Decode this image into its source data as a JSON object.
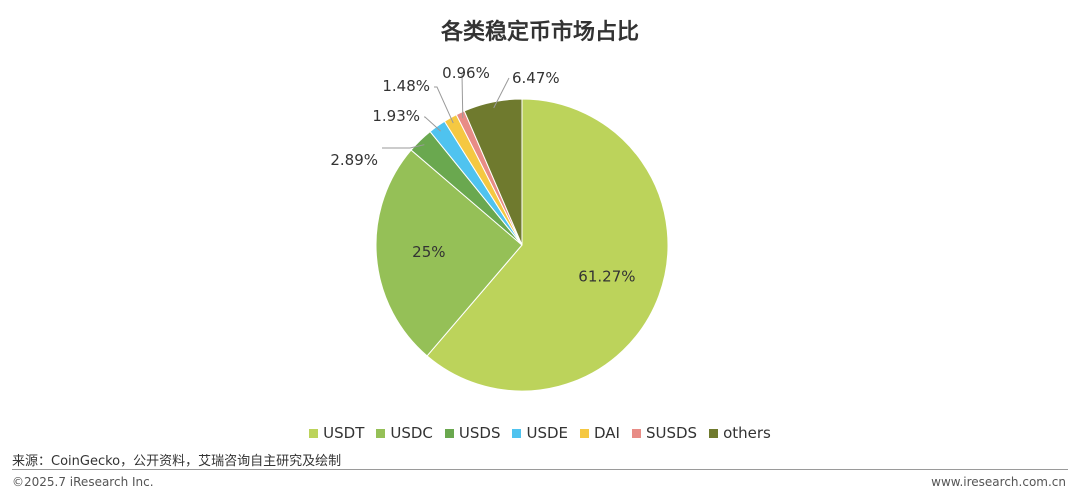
{
  "chart_data": {
    "type": "pie",
    "title": "各类稳定币市场占比",
    "categories": [
      "USDT",
      "USDC",
      "USDS",
      "USDE",
      "DAI",
      "SUSDS",
      "others"
    ],
    "values": [
      61.27,
      25,
      2.89,
      1.93,
      1.48,
      0.96,
      6.47
    ],
    "labels": [
      "61.27%",
      "25%",
      "2.89%",
      "1.93%",
      "1.48%",
      "0.96%",
      "6.47%"
    ],
    "colors": [
      "#bcd35b",
      "#95c057",
      "#6aa84f",
      "#4fc3ef",
      "#f5c842",
      "#e88c86",
      "#6f7a2e"
    ],
    "legend_position": "bottom",
    "start": "top",
    "direction": "clockwise"
  },
  "footer": {
    "source": "来源：CoinGecko，公开资料，艾瑞咨询自主研究及绘制",
    "copyright": "©2025.7 iResearch Inc.",
    "website": "www.iresearch.com.cn"
  }
}
